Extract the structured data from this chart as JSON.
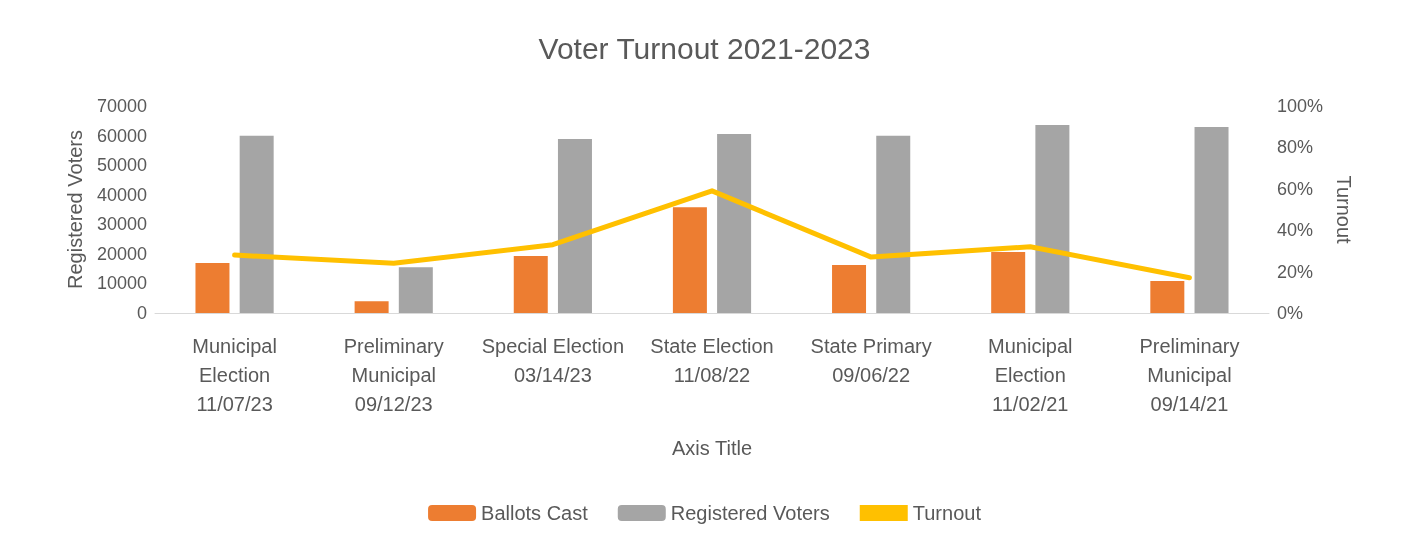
{
  "chart_data": {
    "type": "bar",
    "title": "Voter Turnout 2021-2023",
    "xlabel": "Axis Title",
    "ylabel": "Registered Voters",
    "y2label": "Turnout",
    "categories": [
      "Municipal Election 11/07/23",
      "Preliminary Municipal 09/12/23",
      "Special Election 03/14/23",
      "State Election 11/08/22",
      "State Primary 09/06/22",
      "Municipal Election 11/02/21",
      "Preliminary Municipal 09/14/21"
    ],
    "series": [
      {
        "name": "Ballots Cast",
        "color": "#ed7d31",
        "values": [
          16900,
          4000,
          19300,
          35800,
          16200,
          20600,
          10800
        ]
      },
      {
        "name": "Registered Voters",
        "color": "#a5a5a5",
        "values": [
          59900,
          15500,
          58800,
          60500,
          59900,
          63600,
          62900
        ]
      },
      {
        "name": "Turnout",
        "type": "line",
        "axis": "y2",
        "color": "#ffc000",
        "values": [
          28,
          24,
          33,
          59,
          27,
          32,
          17
        ]
      }
    ],
    "ylim": [
      0,
      70000
    ],
    "yticks": [
      0,
      10000,
      20000,
      30000,
      40000,
      50000,
      60000,
      70000
    ],
    "y2lim": [
      0,
      100
    ],
    "y2ticks": [
      {
        "value": 0,
        "label": "0%"
      },
      {
        "value": 20,
        "label": "20%"
      },
      {
        "value": 40,
        "label": "40%"
      },
      {
        "value": 60,
        "label": "60%"
      },
      {
        "value": 80,
        "label": "80%"
      },
      {
        "value": 100,
        "label": "100%"
      }
    ],
    "grid": false,
    "legend": "bottom",
    "marker": "none",
    "line_style": "solid"
  }
}
